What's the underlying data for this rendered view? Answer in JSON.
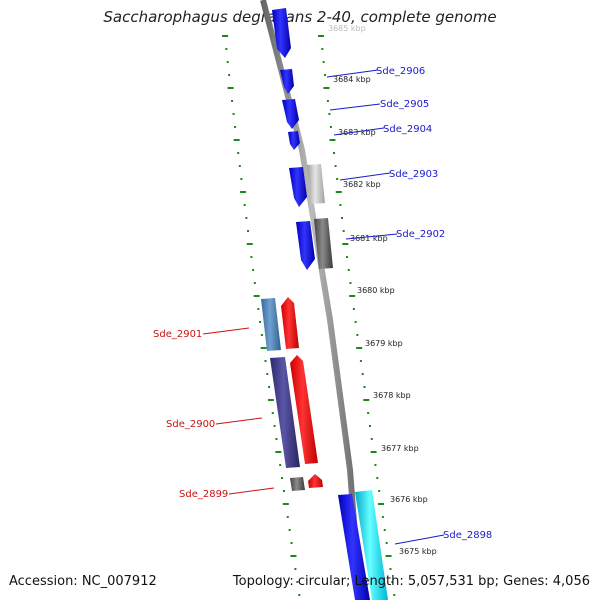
{
  "title": "Saccharophagus degradans 2-40, complete genome",
  "footer": {
    "accession": "Accession: NC_007912",
    "genome_info": "Topology: circular; Length: 5,057,531 bp; Genes: 4,056"
  },
  "ruler": {
    "unit": "kbp",
    "ticks": [
      {
        "kbp": 3685,
        "label": "3685 kbp"
      },
      {
        "kbp": 3684,
        "label": "3684 kbp"
      },
      {
        "kbp": 3683,
        "label": "3683 kbp"
      },
      {
        "kbp": 3682,
        "label": "3682 kbp"
      },
      {
        "kbp": 3681,
        "label": "3681 kbp"
      },
      {
        "kbp": 3680,
        "label": "3680 kbp"
      },
      {
        "kbp": 3679,
        "label": "3679 kbp"
      },
      {
        "kbp": 3678,
        "label": "3678 kbp"
      },
      {
        "kbp": 3677,
        "label": "3677 kbp"
      },
      {
        "kbp": 3676,
        "label": "3676 kbp"
      },
      {
        "kbp": 3675,
        "label": "3675 kbp"
      }
    ]
  },
  "genes": [
    {
      "label": "Sde_2906",
      "strand": "forward",
      "color": "#1a1aee"
    },
    {
      "label": "Sde_2905",
      "strand": "forward",
      "color": "#1a1aee"
    },
    {
      "label": "Sde_2904",
      "strand": "forward",
      "color": "#1a1aee"
    },
    {
      "label": "Sde_2903",
      "strand": "forward",
      "color": "#1a1aee"
    },
    {
      "label": "Sde_2902",
      "strand": "forward",
      "color": "#1a1aee"
    },
    {
      "label": "Sde_2901",
      "strand": "reverse",
      "color": "#ee1a1a"
    },
    {
      "label": "Sde_2900",
      "strand": "reverse",
      "color": "#ee1a1a"
    },
    {
      "label": "Sde_2899",
      "strand": "reverse",
      "color": "#ee1a1a"
    },
    {
      "label": "Sde_2898",
      "strand": "forward",
      "color": "#1a1aee"
    }
  ],
  "colors": {
    "forward_label": "#1a1acc",
    "reverse_label": "#cc1111",
    "ruler": "#1a8a1a",
    "backbone": "#888888"
  }
}
